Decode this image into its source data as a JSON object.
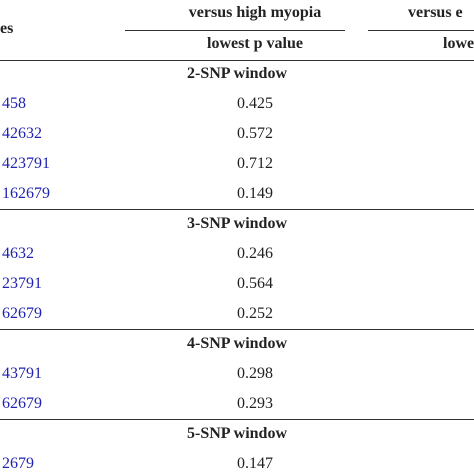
{
  "header": {
    "row_label": "es",
    "groups": [
      {
        "title": "versus high myopia",
        "sub": "lowest p value"
      },
      {
        "title": "versus e",
        "sub": "lowe"
      }
    ]
  },
  "sections": [
    {
      "title": "2-SNP window",
      "rows": [
        [
          "458",
          "0.425"
        ],
        [
          "42632",
          "0.572"
        ],
        [
          "423791",
          "0.712"
        ],
        [
          "162679",
          "0.149"
        ]
      ]
    },
    {
      "title": "3-SNP window",
      "rows": [
        [
          "4632",
          "0.246"
        ],
        [
          "23791",
          "0.564"
        ],
        [
          "62679",
          "0.252"
        ]
      ]
    },
    {
      "title": "4-SNP window",
      "rows": [
        [
          "43791",
          "0.298"
        ],
        [
          "62679",
          "0.293"
        ]
      ]
    },
    {
      "title": "5-SNP window",
      "rows": [
        [
          "2679",
          "0.147"
        ]
      ]
    }
  ]
}
